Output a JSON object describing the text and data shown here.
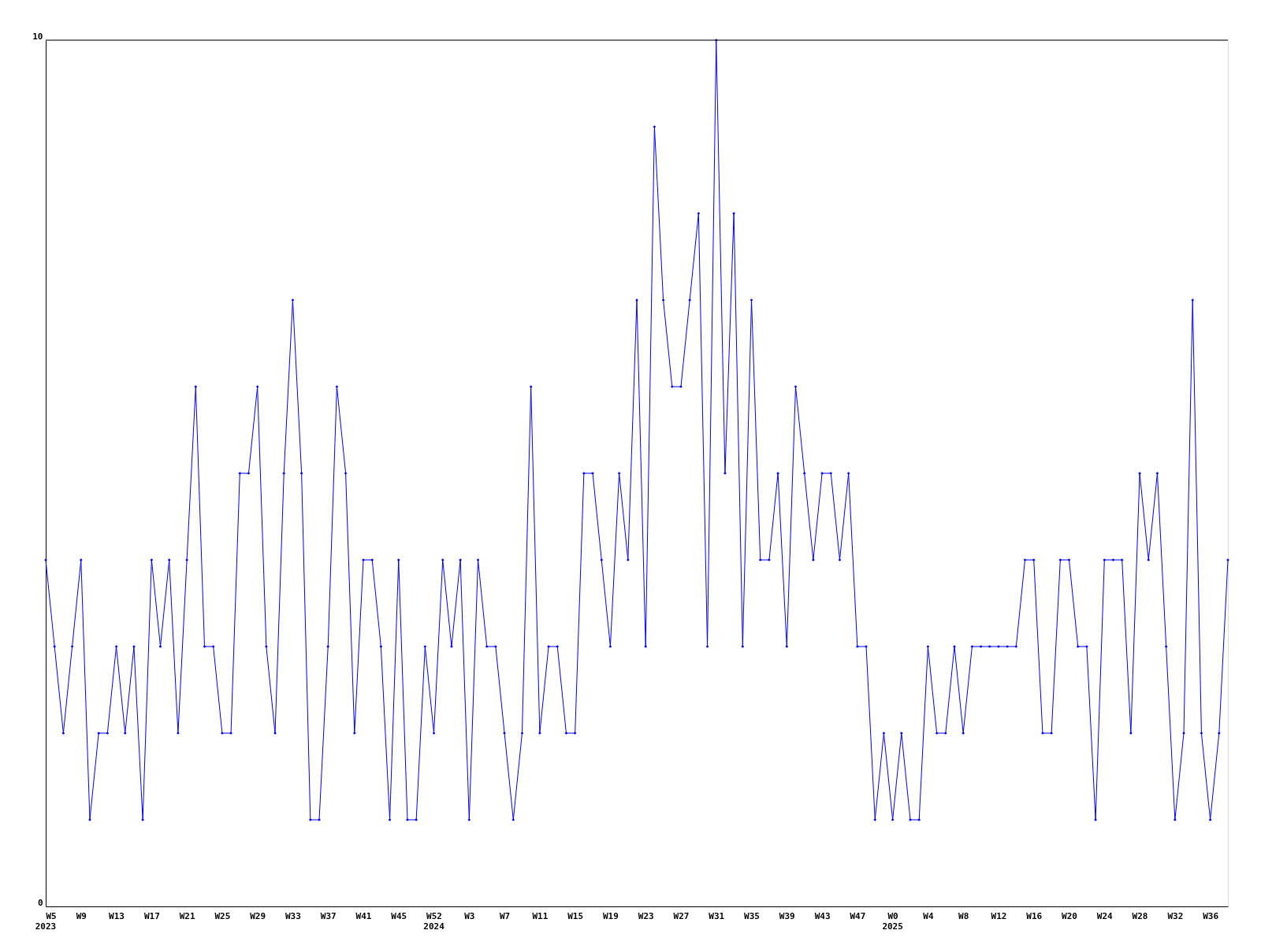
{
  "chart_data": {
    "type": "line",
    "categories": [
      "W5\n2023",
      null,
      null,
      null,
      "W9",
      null,
      null,
      null,
      "W13",
      null,
      null,
      null,
      "W17",
      null,
      null,
      null,
      "W21",
      null,
      null,
      null,
      "W25",
      null,
      null,
      null,
      "W29",
      null,
      null,
      null,
      "W33",
      null,
      null,
      null,
      "W37",
      null,
      null,
      null,
      "W41",
      null,
      null,
      null,
      "W45",
      null,
      null,
      null,
      "W52\n2024",
      null,
      null,
      null,
      "W3",
      null,
      null,
      null,
      "W7",
      null,
      null,
      null,
      "W11",
      null,
      null,
      null,
      "W15",
      null,
      null,
      null,
      "W19",
      null,
      null,
      null,
      "W23",
      null,
      null,
      null,
      "W27",
      null,
      null,
      null,
      "W31",
      null,
      null,
      null,
      "W35",
      null,
      null,
      null,
      "W39",
      null,
      null,
      null,
      "W43",
      null,
      null,
      null,
      "W47",
      null,
      null,
      null,
      "W0\n2025",
      null,
      null,
      null,
      "W4",
      null,
      null,
      null,
      "W8",
      null,
      null,
      null,
      "W12",
      null,
      null,
      null,
      "W16",
      null,
      null,
      null,
      "W20",
      null,
      null,
      null,
      "W24",
      null,
      null,
      null,
      "W28",
      null,
      null,
      null,
      "W32",
      null,
      null,
      null,
      "W36",
      null,
      null
    ],
    "series": [
      {
        "color": "#0000ff",
        "values": [
          4,
          3,
          2,
          3,
          4,
          1,
          2,
          2,
          3,
          2,
          3,
          1,
          4,
          3,
          4,
          2,
          4,
          6,
          3,
          3,
          2,
          2,
          5,
          5,
          6,
          3,
          2,
          5,
          7,
          5,
          1,
          1,
          3,
          6,
          5,
          2,
          4,
          4,
          3,
          1,
          4,
          1,
          1,
          3,
          2,
          4,
          3,
          4,
          1,
          4,
          3,
          3,
          2,
          1,
          2,
          6,
          2,
          3,
          3,
          2,
          2,
          5,
          5,
          4,
          3,
          5,
          4,
          7,
          3,
          9,
          7,
          6,
          6,
          7,
          8,
          3,
          10,
          5,
          8,
          3,
          7,
          4,
          4,
          5,
          3,
          6,
          5,
          4,
          5,
          5,
          4,
          5,
          3,
          3,
          1,
          2,
          1,
          2,
          1,
          1,
          3,
          2,
          2,
          3,
          2,
          3,
          3,
          3,
          3,
          3,
          3,
          4,
          4,
          2,
          2,
          4,
          4,
          3,
          3,
          1,
          4,
          4,
          4,
          2,
          5,
          4,
          5,
          3,
          1,
          2,
          7,
          2,
          1,
          2,
          4
        ]
      }
    ],
    "ylim": [
      0,
      10
    ],
    "yticks": [
      0,
      10
    ],
    "marker": "diamond",
    "line_style": "solid"
  }
}
